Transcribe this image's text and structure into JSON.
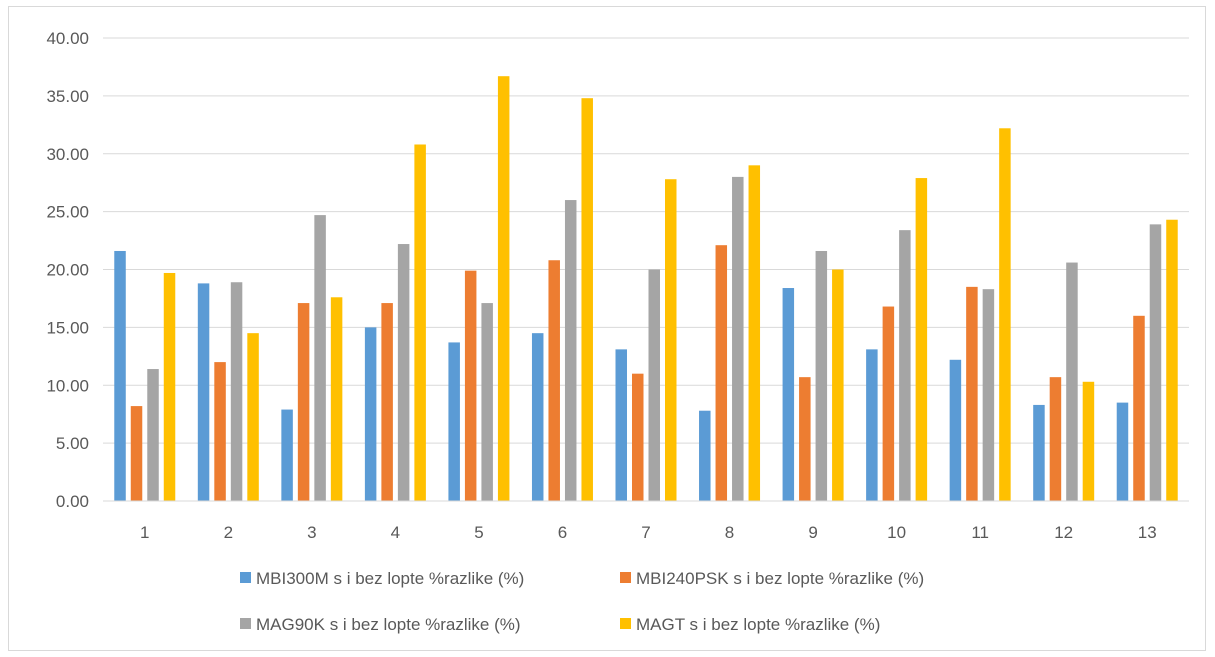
{
  "chart_data": {
    "type": "bar",
    "categories": [
      "1",
      "2",
      "3",
      "4",
      "5",
      "6",
      "7",
      "8",
      "9",
      "10",
      "11",
      "12",
      "13"
    ],
    "series": [
      {
        "name": "MBI300M s i bez lopte %razlike (%)",
        "color": "#5b9bd5",
        "values": [
          21.6,
          18.8,
          7.9,
          15.0,
          13.7,
          14.5,
          13.1,
          7.8,
          18.4,
          13.1,
          12.2,
          8.3,
          8.5
        ]
      },
      {
        "name": "MBI240PSK s i bez lopte %razlike (%)",
        "color": "#ed7d31",
        "values": [
          8.2,
          12.0,
          17.1,
          17.1,
          19.9,
          20.8,
          11.0,
          22.1,
          10.7,
          16.8,
          18.5,
          10.7,
          16.0
        ]
      },
      {
        "name": "MAG90K s i bez lopte %razlike (%)",
        "color": "#a5a5a5",
        "values": [
          11.4,
          18.9,
          24.7,
          22.2,
          17.1,
          26.0,
          20.0,
          28.0,
          21.6,
          23.4,
          18.3,
          20.6,
          23.9
        ]
      },
      {
        "name": "MAGT s i bez lopte %razlike (%)",
        "color": "#ffc000",
        "values": [
          19.7,
          14.5,
          17.6,
          30.8,
          36.7,
          34.8,
          27.8,
          29.0,
          20.0,
          27.9,
          32.2,
          10.3,
          24.3
        ]
      }
    ],
    "yticks": [
      "0.00",
      "5.00",
      "10.00",
      "15.00",
      "20.00",
      "25.00",
      "30.00",
      "35.00",
      "40.00"
    ],
    "ylim": [
      0,
      40
    ],
    "grid": true,
    "legend_position": "bottom"
  }
}
